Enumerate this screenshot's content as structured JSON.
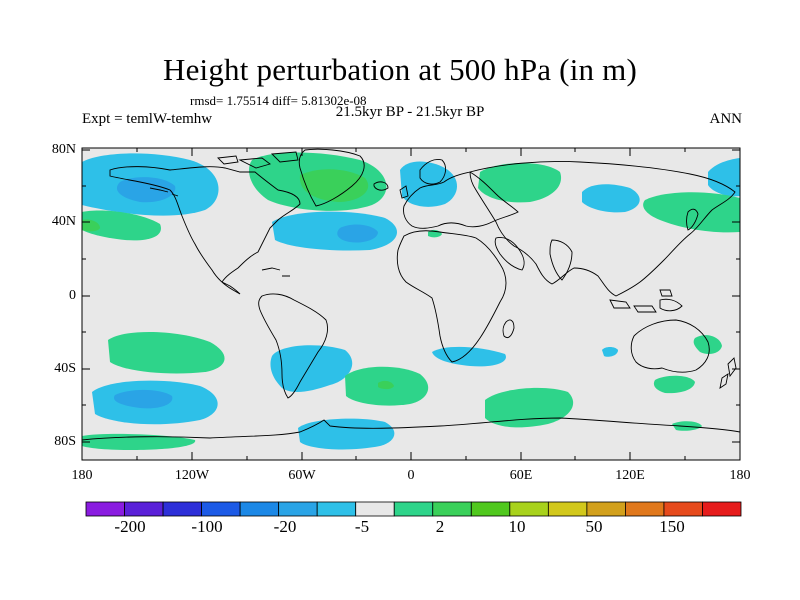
{
  "title": "Height perturbation at 500 hPa (in m)",
  "stats": "rmsd= 1.75514  diff= 5.81302e-08",
  "period": "21.5kyr BP - 21.5kyr BP",
  "experiment": "Expt = temlW-temhw",
  "season": "ANN",
  "map": {
    "lat_labels": [
      "80N",
      "40N",
      "0",
      "40S",
      "80S"
    ],
    "lon_labels": [
      "180",
      "120W",
      "60W",
      "0",
      "60E",
      "120E",
      "180"
    ],
    "ocean_color": "#e8e8e8",
    "coastline_color": "#000000"
  },
  "colorbar": {
    "labels": [
      "-200",
      "-100",
      "-20",
      "-5",
      "2",
      "10",
      "50",
      "150"
    ],
    "colors": [
      "#8a1ce0",
      "#5a20d8",
      "#2d2fd8",
      "#1c5ae6",
      "#1c88e6",
      "#2aa4e6",
      "#2ec0e8",
      "#e8e8e8",
      "#2ed48a",
      "#3ad05a",
      "#50c81e",
      "#a8d21c",
      "#d2c81c",
      "#d2a01c",
      "#e0781c",
      "#e64a1c",
      "#e61c1c"
    ]
  }
}
